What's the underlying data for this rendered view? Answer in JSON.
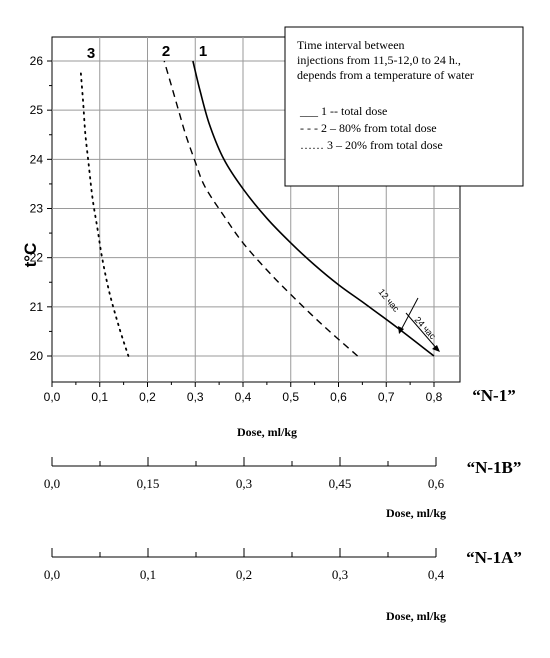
{
  "chart_data": {
    "type": "line",
    "ylabel": "t°C",
    "xlabel": "Dose, ml/kg",
    "xlim": [
      0.0,
      0.8
    ],
    "ylim": [
      20,
      26
    ],
    "yticks": [
      "20",
      "21",
      "22",
      "23",
      "24",
      "25",
      "26"
    ],
    "xticks": [
      "0,0",
      "0,1",
      "0,2",
      "0,3",
      "0,4",
      "0,5",
      "0,6",
      "0,7",
      "0,8"
    ],
    "grid": true,
    "series": [
      {
        "name": "1",
        "style": "solid",
        "x": [
          0.8,
          0.72,
          0.65,
          0.6,
          0.55,
          0.5,
          0.45,
          0.4,
          0.36,
          0.33,
          0.31,
          0.295
        ],
        "y": [
          20.0,
          20.6,
          21.1,
          21.45,
          21.85,
          22.3,
          22.8,
          23.4,
          24.0,
          24.7,
          25.4,
          26.0
        ]
      },
      {
        "name": "2",
        "style": "dashed",
        "x": [
          0.64,
          0.57,
          0.5,
          0.45,
          0.4,
          0.36,
          0.32,
          0.3,
          0.28,
          0.265,
          0.25,
          0.235
        ],
        "y": [
          20.0,
          20.6,
          21.25,
          21.75,
          22.3,
          22.85,
          23.45,
          23.95,
          24.5,
          25.0,
          25.5,
          26.0
        ]
      },
      {
        "name": "3",
        "style": "dotted",
        "x": [
          0.16,
          0.14,
          0.12,
          0.105,
          0.095,
          0.085,
          0.078,
          0.07,
          0.065,
          0.06
        ],
        "y": [
          20.0,
          20.6,
          21.3,
          22.0,
          22.6,
          23.2,
          23.8,
          24.5,
          25.2,
          25.8
        ]
      }
    ],
    "legend": {
      "position": "top-right",
      "title_lines": [
        "Time interval  between",
        "injections from 11,5-12,0  to 24 h.,",
        "depends from a temperature of water"
      ],
      "entries": [
        "___  1 --  total dose",
        "- - -  2 – 80% from  total dose",
        "……  3 – 20% from  total dose"
      ]
    },
    "annotations": [
      "12 час",
      "24 час"
    ],
    "scale_names": [
      "“N-1”",
      "“N-1B”",
      "“N-1A”"
    ]
  },
  "secondary_axes": [
    {
      "name": "“N-1B”",
      "xlabel": "Dose, ml/kg",
      "xlim": [
        0.0,
        0.6
      ],
      "tick_labels": [
        "0,0",
        "0,15",
        "0,3",
        "0,45",
        "0,6"
      ]
    },
    {
      "name": "“N-1A”",
      "xlabel": "Dose, ml/kg",
      "xlim": [
        0.0,
        0.4
      ],
      "tick_labels": [
        "0,0",
        "0,1",
        "0,2",
        "0,3",
        "0,4"
      ]
    }
  ],
  "colors": {
    "line": "#000000",
    "grid": "#9a9a9a"
  }
}
